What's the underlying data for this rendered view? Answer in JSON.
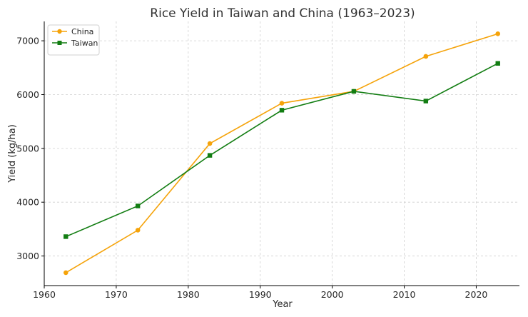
{
  "chart_data": {
    "type": "line",
    "title": "Rice Yield in Taiwan and China (1963–2023)",
    "xlabel": "Year",
    "ylabel": "Yield (kg/ha)",
    "x": [
      1963,
      1973,
      1983,
      1993,
      2003,
      2013,
      2023
    ],
    "xlim": [
      1960,
      2026
    ],
    "ylim": [
      2450,
      7360
    ],
    "xticks": [
      1960,
      1970,
      1980,
      1990,
      2000,
      2010,
      2020
    ],
    "yticks": [
      3000,
      4000,
      5000,
      6000,
      7000
    ],
    "grid": true,
    "legend_position": "top-left",
    "series": [
      {
        "name": "China",
        "color": "#f5a30a",
        "marker": "circle",
        "values": [
          2690,
          3480,
          5090,
          5840,
          6060,
          6710,
          7130
        ]
      },
      {
        "name": "Taiwan",
        "color": "#127d12",
        "marker": "square",
        "values": [
          3360,
          3930,
          4870,
          5710,
          6060,
          5880,
          6580
        ]
      }
    ]
  }
}
